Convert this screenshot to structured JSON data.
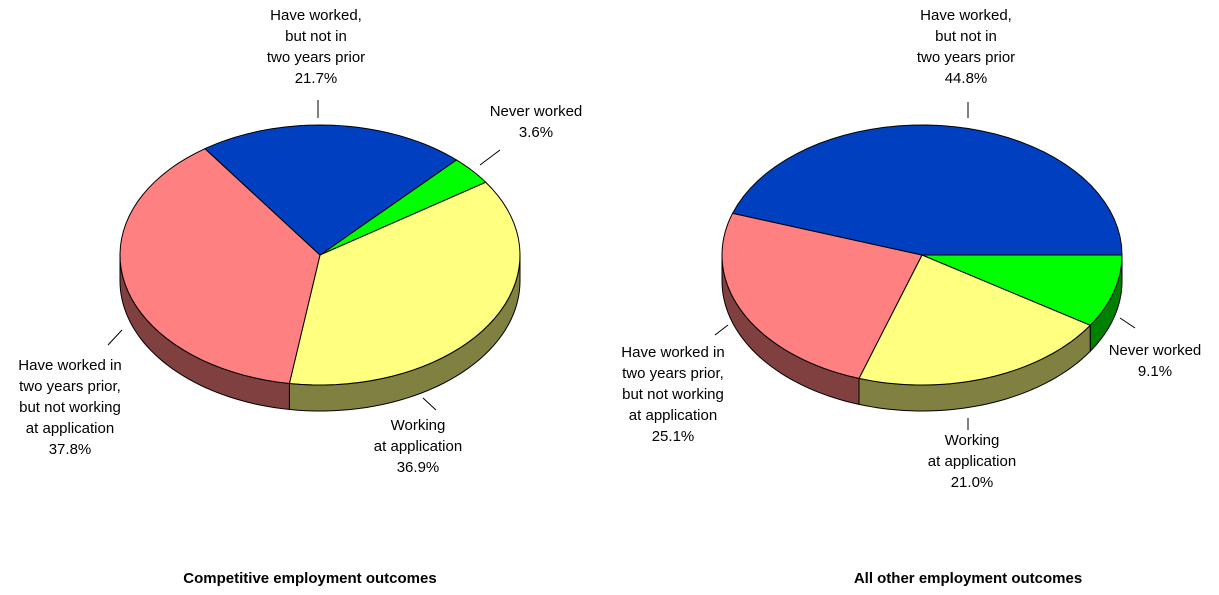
{
  "chart_data": [
    {
      "type": "pie",
      "title": "Competitive employment outcomes",
      "categories": [
        "Never worked",
        "Working\nat application",
        "Have worked in\ntwo years prior,\nbut not working\nat application",
        "Have worked,\nbut not in\ntwo years prior"
      ],
      "values": [
        3.6,
        36.9,
        37.8,
        21.7
      ],
      "value_labels": [
        "3.6%",
        "36.9%",
        "37.8%",
        "21.7%"
      ],
      "colors": [
        "#00ff00",
        "#ffff80",
        "#ff8080",
        "#0040c0"
      ]
    },
    {
      "type": "pie",
      "title": "All other employment outcomes",
      "categories": [
        "Never worked",
        "Working\nat application",
        "Have worked in\ntwo years prior,\nbut not working\nat application",
        "Have worked,\nbut not in\ntwo years prior"
      ],
      "values": [
        9.1,
        21.0,
        25.1,
        44.8
      ],
      "value_labels": [
        "9.1%",
        "21.0%",
        "25.1%",
        "44.8%"
      ],
      "colors": [
        "#00ff00",
        "#ffff80",
        "#ff8080",
        "#0040c0"
      ]
    }
  ]
}
